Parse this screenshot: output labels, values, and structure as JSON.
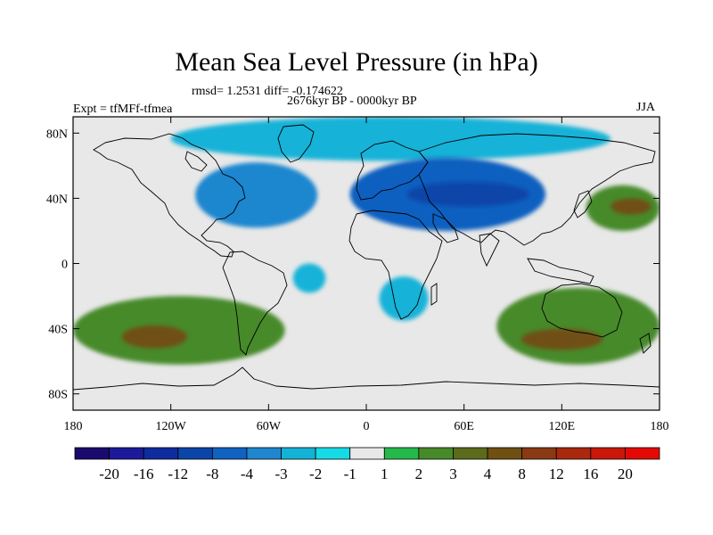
{
  "chart_data": {
    "type": "heatmap",
    "title": "Mean Sea Level Pressure (in hPa)",
    "stats_text": "rmsd= 1.2531 diff= -0.174622",
    "period_text": "2676kyr BP - 0000kyr BP",
    "experiment_text": "Expt = tfMFf-tfmea",
    "season_text": "JJA",
    "xlim": [
      -180,
      180
    ],
    "ylim": [
      -90,
      90
    ],
    "x_ticks": [
      {
        "value": -180,
        "label": "180"
      },
      {
        "value": -120,
        "label": "120W"
      },
      {
        "value": -60,
        "label": "60W"
      },
      {
        "value": 0,
        "label": "0"
      },
      {
        "value": 60,
        "label": "60E"
      },
      {
        "value": 120,
        "label": "120E"
      },
      {
        "value": 180,
        "label": "180"
      }
    ],
    "y_ticks": [
      {
        "value": 80,
        "label": "80N"
      },
      {
        "value": 40,
        "label": "40N"
      },
      {
        "value": 0,
        "label": "0"
      },
      {
        "value": -40,
        "label": "40S"
      },
      {
        "value": -80,
        "label": "80S"
      }
    ],
    "colorbar_levels": [
      "-20",
      "-16",
      "-12",
      "-8",
      "-4",
      "-3",
      "-2",
      "-1",
      "1",
      "2",
      "3",
      "4",
      "8",
      "12",
      "16",
      "20"
    ],
    "colorbar_colors": [
      "#1a0a6e",
      "#1c1a9a",
      "#0f2c9e",
      "#0b45a8",
      "#1161c0",
      "#1f86cf",
      "#15b2d8",
      "#16dbe6",
      "#e8e8e8",
      "#25b84a",
      "#478a2a",
      "#5b6b1b",
      "#6f5012",
      "#8a3a12",
      "#a9280e",
      "#c9170a",
      "#e30a06"
    ],
    "field_regions": [
      {
        "region": "arctic",
        "lon": [
          -120,
          150
        ],
        "lat": [
          63,
          90
        ],
        "level": "-2"
      },
      {
        "region": "north-america-atlantic",
        "lon": [
          -105,
          -30
        ],
        "lat": [
          22,
          62
        ],
        "level": "-3"
      },
      {
        "region": "eurasia",
        "lon": [
          -10,
          110
        ],
        "lat": [
          20,
          65
        ],
        "level": "-4"
      },
      {
        "region": "eurasia-core",
        "lon": [
          25,
          100
        ],
        "lat": [
          35,
          50
        ],
        "level": "-8"
      },
      {
        "region": "tropical-atlantic",
        "lon": [
          -45,
          -25
        ],
        "lat": [
          -18,
          0
        ],
        "level": "-2"
      },
      {
        "region": "southern-africa",
        "lon": [
          8,
          38
        ],
        "lat": [
          -35,
          -8
        ],
        "level": "-2"
      },
      {
        "region": "nw-pacific",
        "lon": [
          135,
          180
        ],
        "lat": [
          20,
          48
        ],
        "level": "2"
      },
      {
        "region": "nw-pacific-core",
        "lon": [
          150,
          175
        ],
        "lat": [
          30,
          40
        ],
        "level": "4"
      },
      {
        "region": "south-pacific",
        "lon": [
          -180,
          -50
        ],
        "lat": [
          -62,
          -20
        ],
        "level": "2"
      },
      {
        "region": "south-pacific-core",
        "lon": [
          -150,
          -110
        ],
        "lat": [
          -52,
          -38
        ],
        "level": "4"
      },
      {
        "region": "south-indian-ocean",
        "lon": [
          80,
          180
        ],
        "lat": [
          -62,
          -15
        ],
        "level": "2"
      },
      {
        "region": "south-indian-core",
        "lon": [
          95,
          145
        ],
        "lat": [
          -53,
          -40
        ],
        "level": "4"
      }
    ]
  }
}
